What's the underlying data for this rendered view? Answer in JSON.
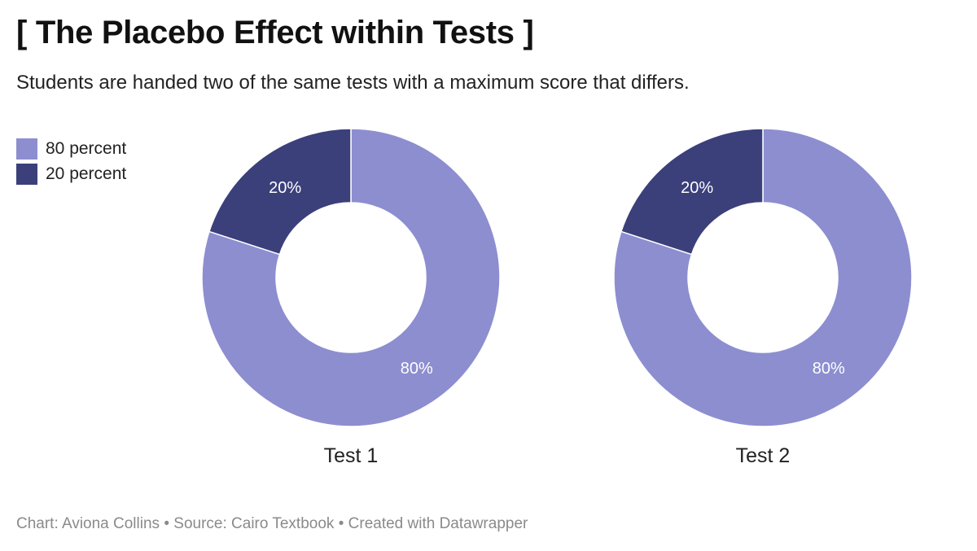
{
  "title": "[ The Placebo Effect within Tests ]",
  "subtitle": "Students are handed two of the same tests with a maximum score that differs.",
  "legend": [
    {
      "label": "80 percent",
      "color": "#8d8ed0"
    },
    {
      "label": "20 percent",
      "color": "#3b3f7a"
    }
  ],
  "footer": {
    "chart_prefix": "Chart: ",
    "chart_author": "Aviona Collins",
    "separator": " • ",
    "source_prefix": "Source: ",
    "source": "Cairo Textbook",
    "created_with": "Created with Datawrapper"
  },
  "colors": {
    "slice_large": "#8d8ed0",
    "slice_small": "#3b3f7a",
    "separator": "#ffffff"
  },
  "chart_data": [
    {
      "type": "pie",
      "donut": true,
      "label": "Test 1",
      "slices": [
        {
          "name": "80 percent",
          "value": 80,
          "label": "80%",
          "color": "#8d8ed0"
        },
        {
          "name": "20 percent",
          "value": 20,
          "label": "20%",
          "color": "#3b3f7a"
        }
      ],
      "legend_position": "top-left"
    },
    {
      "type": "pie",
      "donut": true,
      "label": "Test 2",
      "slices": [
        {
          "name": "80 percent",
          "value": 80,
          "label": "80%",
          "color": "#8d8ed0"
        },
        {
          "name": "20 percent",
          "value": 20,
          "label": "20%",
          "color": "#3b3f7a"
        }
      ],
      "legend_position": "top-left"
    }
  ]
}
